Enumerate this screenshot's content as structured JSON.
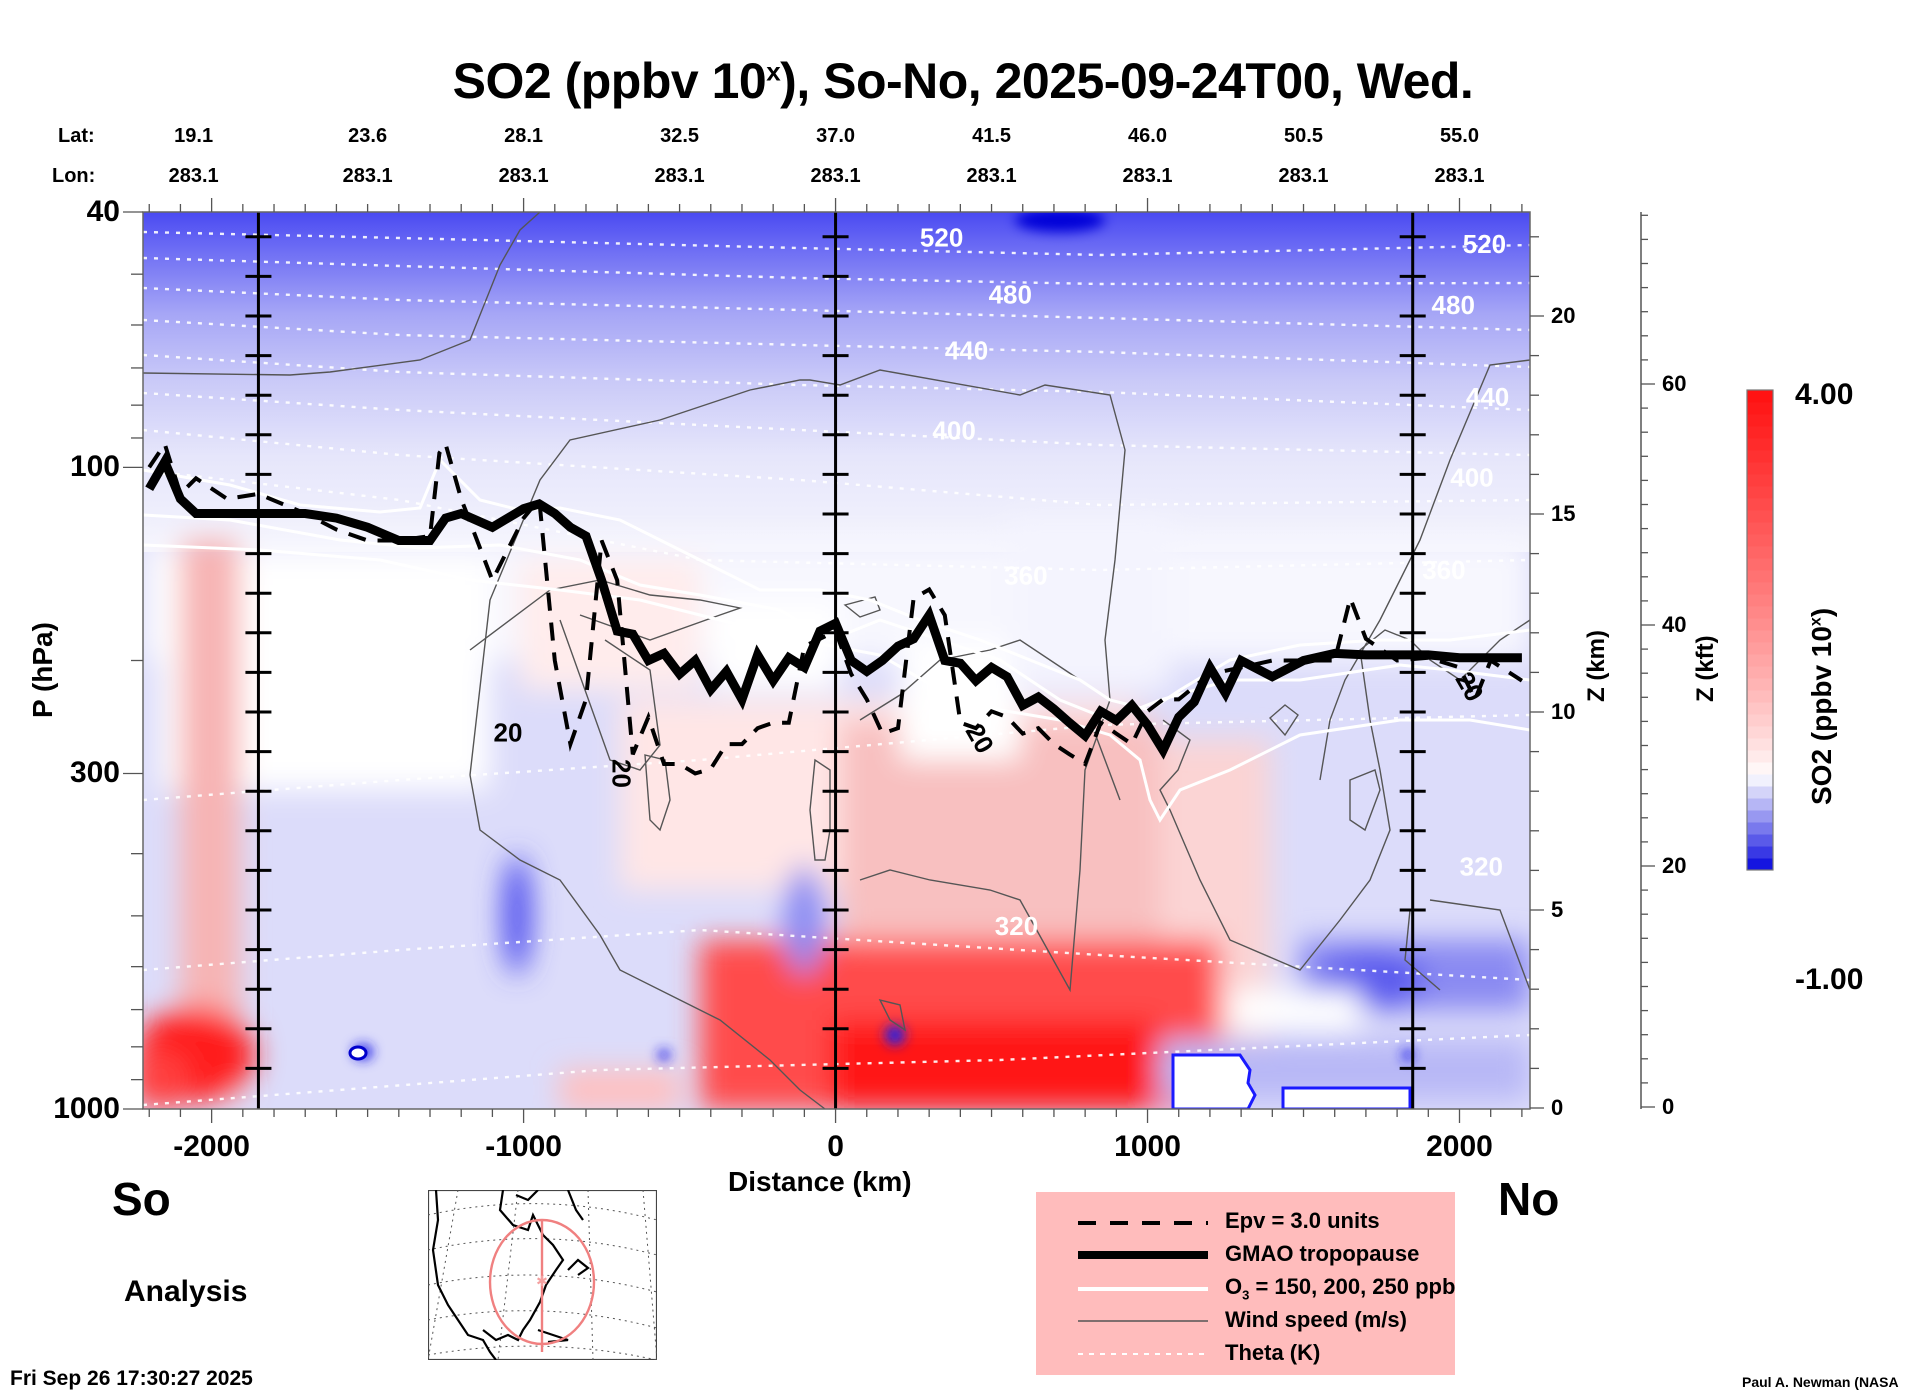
{
  "title": {
    "main": "SO2 (ppbv 10",
    "sup": "x",
    "rest": "), So-No, 2025-09-24T00, Wed."
  },
  "geo": {
    "lat_key": "Lat:",
    "lon_key": "Lon:",
    "points": [
      {
        "distance_km": -2000,
        "lat": "19.1",
        "lon": "283.1"
      },
      {
        "distance_km": -1500,
        "lat": "23.6",
        "lon": "283.1"
      },
      {
        "distance_km": -1000,
        "lat": "28.1",
        "lon": "283.1"
      },
      {
        "distance_km": -500,
        "lat": "32.5",
        "lon": "283.1"
      },
      {
        "distance_km": 0,
        "lat": "37.0",
        "lon": "283.1"
      },
      {
        "distance_km": 500,
        "lat": "41.5",
        "lon": "283.1"
      },
      {
        "distance_km": 1000,
        "lat": "46.0",
        "lon": "283.1"
      },
      {
        "distance_km": 1500,
        "lat": "50.5",
        "lon": "283.1"
      },
      {
        "distance_km": 2000,
        "lat": "55.0",
        "lon": "283.1"
      }
    ]
  },
  "labels": {
    "south": "So",
    "north": "No",
    "analysis": "Analysis",
    "timestamp": "Fri Sep 26 17:30:27 2025",
    "credit": "Paul A. Newman (NASA"
  },
  "legend": {
    "items": [
      {
        "label": "Epv = 3.0 units",
        "style": "dashed-thick"
      },
      {
        "label": "GMAO tropopause",
        "style": "solid-heavy"
      },
      {
        "label_pre": "O",
        "label_sub": "3",
        "label_post": " = 150, 200, 250 ppb",
        "style": "white-solid"
      },
      {
        "label": "Wind speed (m/s)",
        "style": "thin-gray"
      },
      {
        "label": "Theta (K)",
        "style": "white-dotted"
      }
    ]
  },
  "colors": {
    "low": "#0000dd",
    "mid": "#ffffff",
    "high": "#ff1010",
    "legend_bg": "#ffbcbc",
    "map_track": "#f08080"
  },
  "colorbar": {
    "min_label": "4.00",
    "max_label": "-1.00",
    "title": "SO2 (ppbv 10",
    "title_sup": "x",
    "title_end": ")",
    "min": -1.0,
    "max": 4.0,
    "levels": 40
  },
  "chart_data": {
    "type": "heatmap",
    "title": "SO2 (ppbv 10^x), So-No, 2025-09-24T00, Wed.",
    "xlabel": "Distance (km)",
    "ylabel": "P (hPa)",
    "ylabel_right": "Z (km)",
    "ylabel_right2": "Z (kft)",
    "xlim": [
      -2220,
      2226
    ],
    "ylim": [
      1000,
      40
    ],
    "y_scale": "log",
    "x_ticks": [
      -2000,
      -1000,
      0,
      1000,
      2000
    ],
    "x_tick_labels": [
      "-2000",
      "-1000",
      "0",
      "1000",
      "2000"
    ],
    "y_ticks": [
      40,
      100,
      300,
      1000
    ],
    "y_tick_labels": [
      "40",
      "100",
      "300",
      "1000"
    ],
    "z_km_ticks": [
      0,
      5,
      10,
      15,
      20
    ],
    "z_km_labels": [
      "0",
      "5",
      "10",
      "15",
      "20"
    ],
    "z_kft_ticks": [
      0,
      20,
      40,
      60
    ],
    "z_kft_labels": [
      "0",
      "20",
      "40",
      "60"
    ],
    "vertical_markers_km": [
      -1850,
      0,
      1850
    ],
    "theta_contours_K": [
      {
        "value": 320,
        "label": "320"
      },
      {
        "value": 360,
        "label": "360"
      },
      {
        "value": 400,
        "label": "400"
      },
      {
        "value": 440,
        "label": "440"
      },
      {
        "value": 480,
        "label": "480"
      },
      {
        "value": 520,
        "label": "520"
      }
    ],
    "theta_labels": [
      {
        "text": "520",
        "x_km": 340,
        "p": 44
      },
      {
        "text": "480",
        "x_km": 560,
        "p": 54
      },
      {
        "text": "440",
        "x_km": 420,
        "p": 66
      },
      {
        "text": "400",
        "x_km": 380,
        "p": 88
      },
      {
        "text": "360",
        "x_km": 610,
        "p": 148
      },
      {
        "text": "320",
        "x_km": 580,
        "p": 520
      },
      {
        "text": "520",
        "x_km": 2080,
        "p": 45
      },
      {
        "text": "480",
        "x_km": 1980,
        "p": 56
      },
      {
        "text": "440",
        "x_km": 2090,
        "p": 78
      },
      {
        "text": "400",
        "x_km": 2040,
        "p": 104
      },
      {
        "text": "360",
        "x_km": 1950,
        "p": 145
      },
      {
        "text": "320",
        "x_km": 2070,
        "p": 420
      }
    ],
    "wind_labels": [
      {
        "text": "20",
        "x_km": -1050,
        "p": 260
      },
      {
        "text": "20",
        "x_km": -690,
        "p": 300
      },
      {
        "text": "20",
        "x_km": 460,
        "p": 265
      },
      {
        "text": "20",
        "x_km": 2030,
        "p": 220
      }
    ],
    "tropopause_p_hPa": {
      "x_km": [
        -2200,
        -2150,
        -2100,
        -2050,
        -1950,
        -1850,
        -1700,
        -1600,
        -1500,
        -1400,
        -1300,
        -1250,
        -1200,
        -1100,
        -1000,
        -950,
        -900,
        -850,
        -800,
        -750,
        -700,
        -650,
        -600,
        -550,
        -500,
        -450,
        -400,
        -350,
        -300,
        -250,
        -200,
        -150,
        -100,
        -50,
        0,
        50,
        100,
        150,
        200,
        250,
        300,
        350,
        400,
        450,
        500,
        550,
        600,
        650,
        700,
        750,
        800,
        850,
        900,
        950,
        1000,
        1050,
        1100,
        1150,
        1200,
        1250,
        1300,
        1400,
        1500,
        1600,
        1700,
        1800,
        1900,
        2000,
        2100,
        2200
      ],
      "values": [
        108,
        98,
        112,
        118,
        118,
        118,
        118,
        120,
        124,
        130,
        130,
        120,
        118,
        124,
        116,
        114,
        118,
        124,
        128,
        150,
        180,
        182,
        200,
        195,
        210,
        200,
        222,
        208,
        230,
        196,
        215,
        198,
        205,
        180,
        175,
        200,
        208,
        200,
        190,
        185,
        170,
        200,
        202,
        215,
        205,
        212,
        235,
        228,
        238,
        250,
        262,
        240,
        248,
        235,
        252,
        276,
        245,
        232,
        205,
        225,
        200,
        212,
        200,
        195,
        196,
        196,
        196,
        198,
        198,
        198
      ]
    },
    "epv3_p_hPa": {
      "x_km": [
        -2200,
        -2150,
        -2100,
        -2050,
        -1950,
        -1850,
        -1700,
        -1600,
        -1500,
        -1400,
        -1300,
        -1270,
        -1250,
        -1200,
        -1100,
        -1000,
        -950,
        -900,
        -850,
        -800,
        -750,
        -700,
        -650,
        -600,
        -550,
        -500,
        -450,
        -400,
        -350,
        -300,
        -250,
        -200,
        -150,
        -100,
        -50,
        0,
        50,
        100,
        150,
        200,
        250,
        300,
        350,
        400,
        450,
        500,
        550,
        600,
        650,
        700,
        750,
        800,
        850,
        900,
        950,
        1000,
        1050,
        1100,
        1200,
        1300,
        1400,
        1500,
        1600,
        1650,
        1700,
        1800,
        1900,
        2000,
        2050,
        2100,
        2200
      ],
      "values": [
        100,
        92,
        110,
        104,
        112,
        110,
        118,
        125,
        130,
        130,
        128,
        95,
        92,
        112,
        150,
        120,
        112,
        200,
        270,
        230,
        130,
        150,
        280,
        245,
        290,
        290,
        300,
        295,
        270,
        270,
        255,
        250,
        250,
        190,
        185,
        180,
        210,
        230,
        260,
        255,
        160,
        155,
        170,
        250,
        255,
        240,
        245,
        260,
        255,
        270,
        280,
        290,
        250,
        260,
        270,
        240,
        230,
        230,
        210,
        205,
        200,
        200,
        200,
        160,
        185,
        200,
        198,
        205,
        230,
        200,
        215
      ]
    },
    "colorbar_range": [
      -1.0,
      4.0
    ],
    "so2_field_description": "Blue (negative, ~-1) in stratosphere above ~100 hPa, strongest near top at 40 hPa; near-white in upper troposphere; red (positive, up to ~4) in lower troposphere near 1000 hPa around 0-1000 km and -2100 km column; blue patches near surface at 1000-2200 km."
  },
  "map": {
    "track_lat_range": [
      "19.1",
      "55.0"
    ],
    "track_lon": "283.1"
  }
}
